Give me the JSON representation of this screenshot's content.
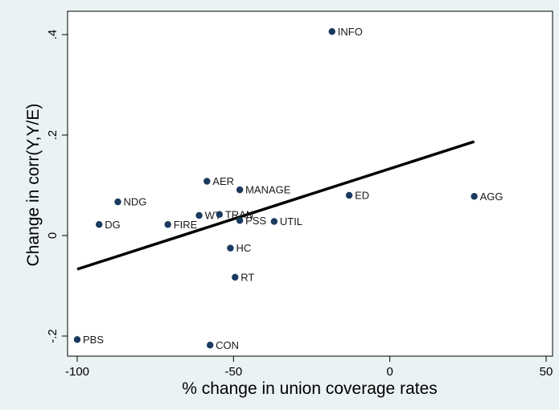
{
  "chart_data": {
    "type": "scatter",
    "xlabel": "% change in union coverage rates",
    "ylabel": "Change in corr(Y,Y/E)",
    "xlim": [
      -100,
      50
    ],
    "ylim": [
      -0.22,
      0.43
    ],
    "xticks": [
      -100,
      -50,
      0,
      50
    ],
    "xtick_labels": [
      "-100",
      "-50",
      "0",
      "50"
    ],
    "yticks": [
      -0.2,
      0,
      0.2,
      0.4
    ],
    "ytick_labels": [
      "-.2",
      "0",
      ".2",
      ".4"
    ],
    "grid": false,
    "point_color": "#1a3a5e",
    "fit_line_color": "#000000",
    "points": [
      {
        "label": "INFO",
        "x": -18.5,
        "y": 0.406
      },
      {
        "label": "AER",
        "x": -58.5,
        "y": 0.108
      },
      {
        "label": "MANAGE",
        "x": -48,
        "y": 0.091
      },
      {
        "label": "NDG",
        "x": -87,
        "y": 0.067
      },
      {
        "label": "ED",
        "x": -13,
        "y": 0.08
      },
      {
        "label": "AGG",
        "x": 27,
        "y": 0.078
      },
      {
        "label": "WT",
        "x": -61,
        "y": 0.04
      },
      {
        "label": "TRAN",
        "x": -54.5,
        "y": 0.042
      },
      {
        "label": "PSS",
        "x": -48,
        "y": 0.03
      },
      {
        "label": "UTIL",
        "x": -37,
        "y": 0.028
      },
      {
        "label": "DG",
        "x": -93,
        "y": 0.022
      },
      {
        "label": "FIRE",
        "x": -71,
        "y": 0.022
      },
      {
        "label": "HC",
        "x": -51,
        "y": -0.025
      },
      {
        "label": "RT",
        "x": -49.5,
        "y": -0.083
      },
      {
        "label": "PBS",
        "x": -100,
        "y": -0.207
      },
      {
        "label": "CON",
        "x": -57.5,
        "y": -0.218
      }
    ],
    "fit_line": {
      "x": [
        -100,
        27
      ],
      "y": [
        -0.067,
        0.187
      ]
    }
  }
}
